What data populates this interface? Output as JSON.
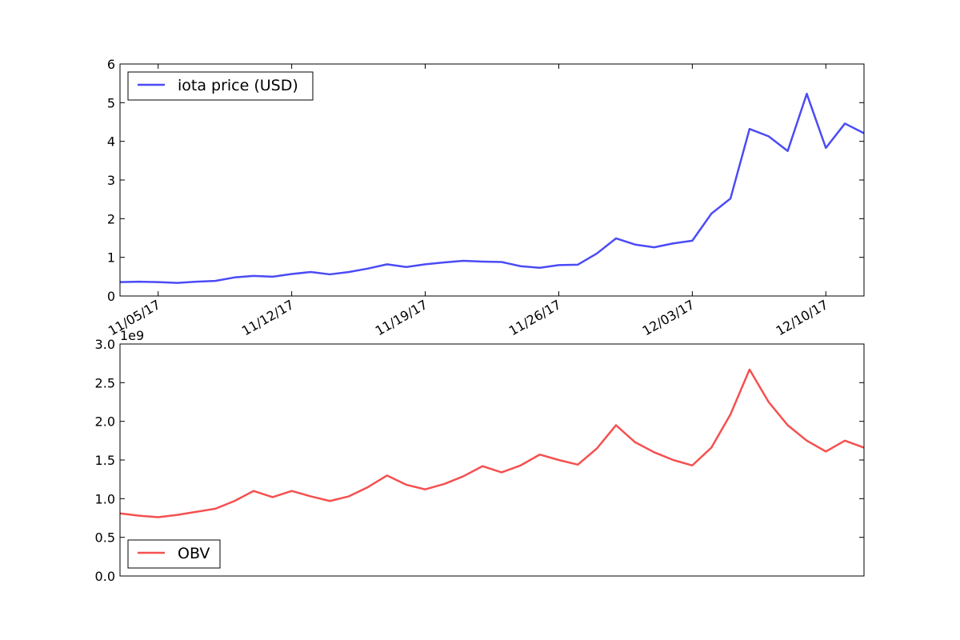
{
  "chart_data": [
    {
      "type": "line",
      "title": "",
      "xlabel": "",
      "ylabel": "",
      "x_start": "2017-11-03",
      "x_end": "2017-12-12",
      "ylim": [
        0,
        6
      ],
      "yticks": [
        0,
        1,
        2,
        3,
        4,
        5,
        6
      ],
      "xticks": [
        {
          "date": "2017-11-05",
          "label": "11/05/17"
        },
        {
          "date": "2017-11-12",
          "label": "11/12/17"
        },
        {
          "date": "2017-11-19",
          "label": "11/19/17"
        },
        {
          "date": "2017-11-26",
          "label": "11/26/17"
        },
        {
          "date": "2017-12-03",
          "label": "12/03/17"
        },
        {
          "date": "2017-12-10",
          "label": "12/10/17"
        }
      ],
      "legend_position": "top-left",
      "series": [
        {
          "name": "iota price (USD)",
          "color": "#4b4bf5",
          "points": [
            {
              "x": "2017-11-03",
              "y": 0.36
            },
            {
              "x": "2017-11-04",
              "y": 0.37
            },
            {
              "x": "2017-11-05",
              "y": 0.36
            },
            {
              "x": "2017-11-06",
              "y": 0.34
            },
            {
              "x": "2017-11-07",
              "y": 0.37
            },
            {
              "x": "2017-11-08",
              "y": 0.39
            },
            {
              "x": "2017-11-09",
              "y": 0.48
            },
            {
              "x": "2017-11-10",
              "y": 0.52
            },
            {
              "x": "2017-11-11",
              "y": 0.5
            },
            {
              "x": "2017-11-12",
              "y": 0.57
            },
            {
              "x": "2017-11-13",
              "y": 0.62
            },
            {
              "x": "2017-11-14",
              "y": 0.56
            },
            {
              "x": "2017-11-15",
              "y": 0.62
            },
            {
              "x": "2017-11-16",
              "y": 0.71
            },
            {
              "x": "2017-11-17",
              "y": 0.82
            },
            {
              "x": "2017-11-18",
              "y": 0.75
            },
            {
              "x": "2017-11-19",
              "y": 0.82
            },
            {
              "x": "2017-11-20",
              "y": 0.87
            },
            {
              "x": "2017-11-21",
              "y": 0.91
            },
            {
              "x": "2017-11-22",
              "y": 0.89
            },
            {
              "x": "2017-11-23",
              "y": 0.88
            },
            {
              "x": "2017-11-24",
              "y": 0.77
            },
            {
              "x": "2017-11-25",
              "y": 0.73
            },
            {
              "x": "2017-11-26",
              "y": 0.8
            },
            {
              "x": "2017-11-27",
              "y": 0.81
            },
            {
              "x": "2017-11-28",
              "y": 1.1
            },
            {
              "x": "2017-11-29",
              "y": 1.49
            },
            {
              "x": "2017-11-30",
              "y": 1.33
            },
            {
              "x": "2017-12-01",
              "y": 1.26
            },
            {
              "x": "2017-12-02",
              "y": 1.36
            },
            {
              "x": "2017-12-03",
              "y": 1.43
            },
            {
              "x": "2017-12-04",
              "y": 2.13
            },
            {
              "x": "2017-12-05",
              "y": 2.52
            },
            {
              "x": "2017-12-06",
              "y": 4.32
            },
            {
              "x": "2017-12-07",
              "y": 4.13
            },
            {
              "x": "2017-12-08",
              "y": 3.75
            },
            {
              "x": "2017-12-09",
              "y": 5.23
            },
            {
              "x": "2017-12-10",
              "y": 3.83
            },
            {
              "x": "2017-12-11",
              "y": 4.46
            },
            {
              "x": "2017-12-12",
              "y": 4.21
            }
          ]
        }
      ]
    },
    {
      "type": "line",
      "title": "",
      "xlabel": "",
      "ylabel": "",
      "offset_text": "1e9",
      "x_start": "2017-11-03",
      "x_end": "2017-12-12",
      "ylim": [
        0,
        3
      ],
      "yticks": [
        "0.0",
        "0.5",
        "1.0",
        "1.5",
        "2.0",
        "2.5",
        "3.0"
      ],
      "legend_position": "bottom-left",
      "series": [
        {
          "name": "OBV",
          "color": "#f55050",
          "points": [
            {
              "x": "2017-11-03",
              "y": 0.81
            },
            {
              "x": "2017-11-04",
              "y": 0.78
            },
            {
              "x": "2017-11-05",
              "y": 0.76
            },
            {
              "x": "2017-11-06",
              "y": 0.79
            },
            {
              "x": "2017-11-07",
              "y": 0.83
            },
            {
              "x": "2017-11-08",
              "y": 0.87
            },
            {
              "x": "2017-11-09",
              "y": 0.97
            },
            {
              "x": "2017-11-10",
              "y": 1.1
            },
            {
              "x": "2017-11-11",
              "y": 1.02
            },
            {
              "x": "2017-11-12",
              "y": 1.1
            },
            {
              "x": "2017-11-13",
              "y": 1.03
            },
            {
              "x": "2017-11-14",
              "y": 0.97
            },
            {
              "x": "2017-11-15",
              "y": 1.03
            },
            {
              "x": "2017-11-16",
              "y": 1.15
            },
            {
              "x": "2017-11-17",
              "y": 1.3
            },
            {
              "x": "2017-11-18",
              "y": 1.18
            },
            {
              "x": "2017-11-19",
              "y": 1.12
            },
            {
              "x": "2017-11-20",
              "y": 1.19
            },
            {
              "x": "2017-11-21",
              "y": 1.29
            },
            {
              "x": "2017-11-22",
              "y": 1.42
            },
            {
              "x": "2017-11-23",
              "y": 1.34
            },
            {
              "x": "2017-11-24",
              "y": 1.43
            },
            {
              "x": "2017-11-25",
              "y": 1.57
            },
            {
              "x": "2017-11-26",
              "y": 1.5
            },
            {
              "x": "2017-11-27",
              "y": 1.44
            },
            {
              "x": "2017-11-28",
              "y": 1.65
            },
            {
              "x": "2017-11-29",
              "y": 1.95
            },
            {
              "x": "2017-11-30",
              "y": 1.73
            },
            {
              "x": "2017-12-01",
              "y": 1.6
            },
            {
              "x": "2017-12-02",
              "y": 1.5
            },
            {
              "x": "2017-12-03",
              "y": 1.43
            },
            {
              "x": "2017-12-04",
              "y": 1.66
            },
            {
              "x": "2017-12-05",
              "y": 2.09
            },
            {
              "x": "2017-12-06",
              "y": 2.67
            },
            {
              "x": "2017-12-07",
              "y": 2.25
            },
            {
              "x": "2017-12-08",
              "y": 1.95
            },
            {
              "x": "2017-12-09",
              "y": 1.75
            },
            {
              "x": "2017-12-10",
              "y": 1.61
            },
            {
              "x": "2017-12-11",
              "y": 1.75
            },
            {
              "x": "2017-12-12",
              "y": 1.66
            }
          ]
        }
      ]
    }
  ]
}
